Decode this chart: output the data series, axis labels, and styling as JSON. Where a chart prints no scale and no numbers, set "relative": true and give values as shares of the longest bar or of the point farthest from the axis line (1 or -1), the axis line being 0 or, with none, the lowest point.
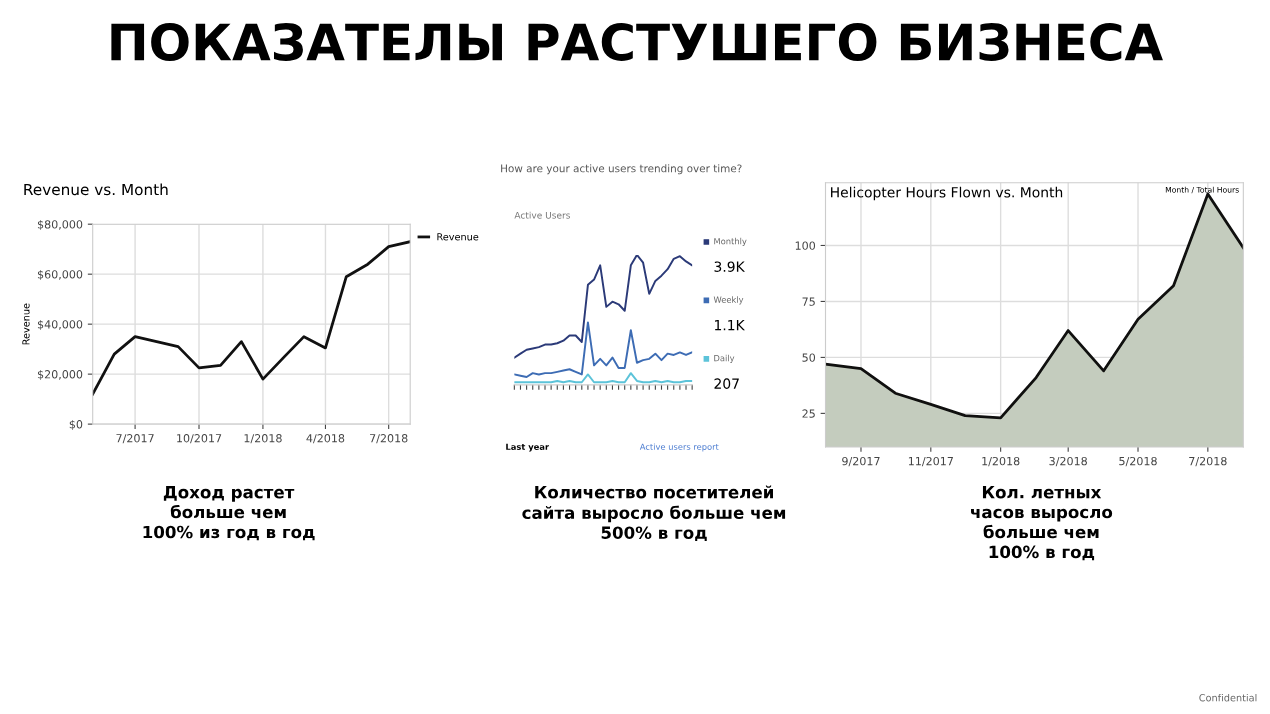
{
  "chart_data": [
    {
      "type": "line",
      "title": "Revenue vs. Month",
      "ylabel": "Revenue",
      "x": [
        "2017-05",
        "2017-06",
        "2017-07",
        "2017-08",
        "2017-09",
        "2017-10",
        "2017-11",
        "2017-12",
        "2018-01",
        "2018-02",
        "2018-03",
        "2018-04",
        "2018-05",
        "2018-06",
        "2018-07",
        "2018-08"
      ],
      "series": [
        {
          "name": "Revenue",
          "color": "#111111",
          "values": [
            12000,
            28000,
            35000,
            33000,
            31000,
            22500,
            23500,
            33000,
            18000,
            27000,
            35000,
            30500,
            59000,
            64000,
            71000,
            73000
          ]
        }
      ],
      "xlim": [
        "2017-05",
        "2018-08"
      ],
      "xticks": [
        {
          "value": "2017-07",
          "label": "7/2017"
        },
        {
          "value": "2017-10",
          "label": "10/2017"
        },
        {
          "value": "2018-01",
          "label": "1/2018"
        },
        {
          "value": "2018-04",
          "label": "4/2018"
        },
        {
          "value": "2018-07",
          "label": "7/2018"
        }
      ],
      "ylim": [
        0,
        80000
      ],
      "yticks": [
        {
          "value": 0,
          "label": "$0"
        },
        {
          "value": 20000,
          "label": "$20,000"
        },
        {
          "value": 40000,
          "label": "$40,000"
        },
        {
          "value": 60000,
          "label": "$60,000"
        },
        {
          "value": 80000,
          "label": "$80,000"
        }
      ],
      "grid": true,
      "legend": "top right",
      "marker": "none",
      "line_style": "solid",
      "annotations": [
        "Доход растет\nбольше чем\n100% из год в год"
      ]
    },
    {
      "type": "line",
      "title": "How are your active users trending over time?",
      "subtitle": "Active Users",
      "relative": true,
      "categories": [
        null,
        null,
        null,
        null,
        null,
        null,
        null,
        null,
        null,
        null,
        null,
        null,
        null,
        null,
        null,
        null,
        null,
        null,
        null,
        null,
        null,
        null,
        null,
        null,
        null,
        null,
        null,
        null,
        null,
        null
      ],
      "series": [
        {
          "name": "Monthly",
          "color": "#2b3a78",
          "values": [
            0.21,
            0.24,
            0.27,
            0.28,
            0.29,
            0.31,
            0.31,
            0.32,
            0.34,
            0.38,
            0.38,
            0.33,
            0.77,
            0.81,
            0.92,
            0.6,
            0.64,
            0.62,
            0.57,
            0.92,
            1.0,
            0.94,
            0.7,
            0.8,
            0.84,
            0.89,
            0.97,
            0.99,
            0.95,
            0.92
          ]
        },
        {
          "name": "Weekly",
          "color": "#3d6cb4",
          "values": [
            0.08,
            0.07,
            0.06,
            0.09,
            0.08,
            0.09,
            0.09,
            0.1,
            0.11,
            0.12,
            0.1,
            0.08,
            0.48,
            0.15,
            0.2,
            0.15,
            0.21,
            0.13,
            0.13,
            0.42,
            0.17,
            0.19,
            0.2,
            0.24,
            0.19,
            0.24,
            0.23,
            0.25,
            0.23,
            0.25
          ]
        },
        {
          "name": "Daily",
          "color": "#5cc3d9",
          "values": [
            0.02,
            0.02,
            0.02,
            0.02,
            0.02,
            0.02,
            0.02,
            0.03,
            0.02,
            0.03,
            0.02,
            0.02,
            0.08,
            0.02,
            0.02,
            0.02,
            0.03,
            0.02,
            0.02,
            0.09,
            0.03,
            0.02,
            0.02,
            0.03,
            0.02,
            0.03,
            0.02,
            0.02,
            0.03,
            0.03
          ]
        }
      ],
      "legend": "right",
      "marker": "none",
      "line_style": "solid",
      "annotations": [
        "3.9K",
        "1.1K",
        "207",
        "Last year",
        "Active users report",
        "Количество посетителей\nсайта выросло больше чем\n500% в год"
      ]
    },
    {
      "type": "area",
      "title": "Helicopter Hours Flown vs. Month",
      "x": [
        "2017-08",
        "2017-09",
        "2017-10",
        "2017-11",
        "2017-12",
        "2018-01",
        "2018-02",
        "2018-03",
        "2018-04",
        "2018-05",
        "2018-06",
        "2018-07",
        "2018-08"
      ],
      "series": [
        {
          "color": "#c4ccbe",
          "values": [
            47,
            45,
            34,
            29,
            24,
            23,
            41,
            62,
            44,
            67,
            82,
            123,
            99
          ]
        }
      ],
      "xlim": [
        "2017-08",
        "2018-08"
      ],
      "xticks": [
        {
          "value": "2017-09",
          "label": "9/2017"
        },
        {
          "value": "2017-11",
          "label": "11/2017"
        },
        {
          "value": "2018-01",
          "label": "1/2018"
        },
        {
          "value": "2018-03",
          "label": "3/2018"
        },
        {
          "value": "2018-05",
          "label": "5/2018"
        },
        {
          "value": "2018-07",
          "label": "7/2018"
        }
      ],
      "ylim": [
        10,
        128
      ],
      "yticks": [
        25,
        50,
        75,
        100
      ],
      "grid": true,
      "annotations": [
        "Month / Total Hours",
        "Кол. летных\nчасов выросло\nбольше чем\n100% в год"
      ]
    },
    {
      "type": "other",
      "annotations": [
        "ПОКАЗАТЕЛЫ РАСТУШЕГО БИЗНЕСА",
        "Confidential"
      ]
    }
  ]
}
